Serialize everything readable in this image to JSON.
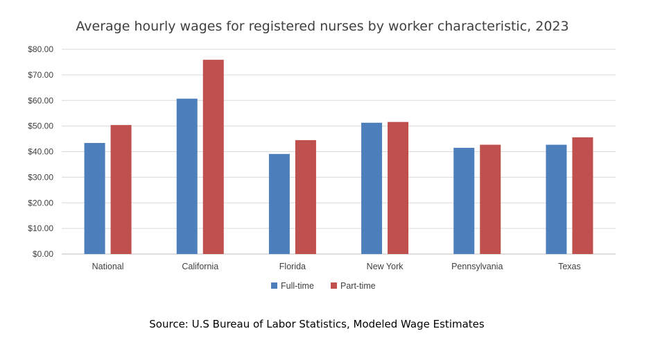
{
  "chart_data": {
    "type": "bar",
    "title": "Average hourly wages for registered nurses by worker characteristic, 2023",
    "categories": [
      "National",
      "California",
      "Florida",
      "New York",
      "Pennsylvania",
      "Texas"
    ],
    "series": [
      {
        "name": "Full-time",
        "color": "#4e7fbd",
        "values": [
          43.4,
          60.7,
          39.1,
          51.3,
          41.5,
          42.7
        ]
      },
      {
        "name": "Part-time",
        "color": "#c0504d",
        "values": [
          50.4,
          75.9,
          44.5,
          51.6,
          42.7,
          45.6
        ]
      }
    ],
    "yticks": [
      "$0.00",
      "$10.00",
      "$20.00",
      "$30.00",
      "$40.00",
      "$50.00",
      "$60.00",
      "$70.00",
      "$80.00"
    ],
    "ylim": [
      0,
      80
    ],
    "grid": true,
    "legend_position": "bottom",
    "source": "Source: U.S Bureau of Labor Statistics, Modeled Wage Estimates",
    "colors": {
      "grid": "#d9d9d9",
      "axis": "#bfbfbf",
      "text": "#404040"
    }
  }
}
